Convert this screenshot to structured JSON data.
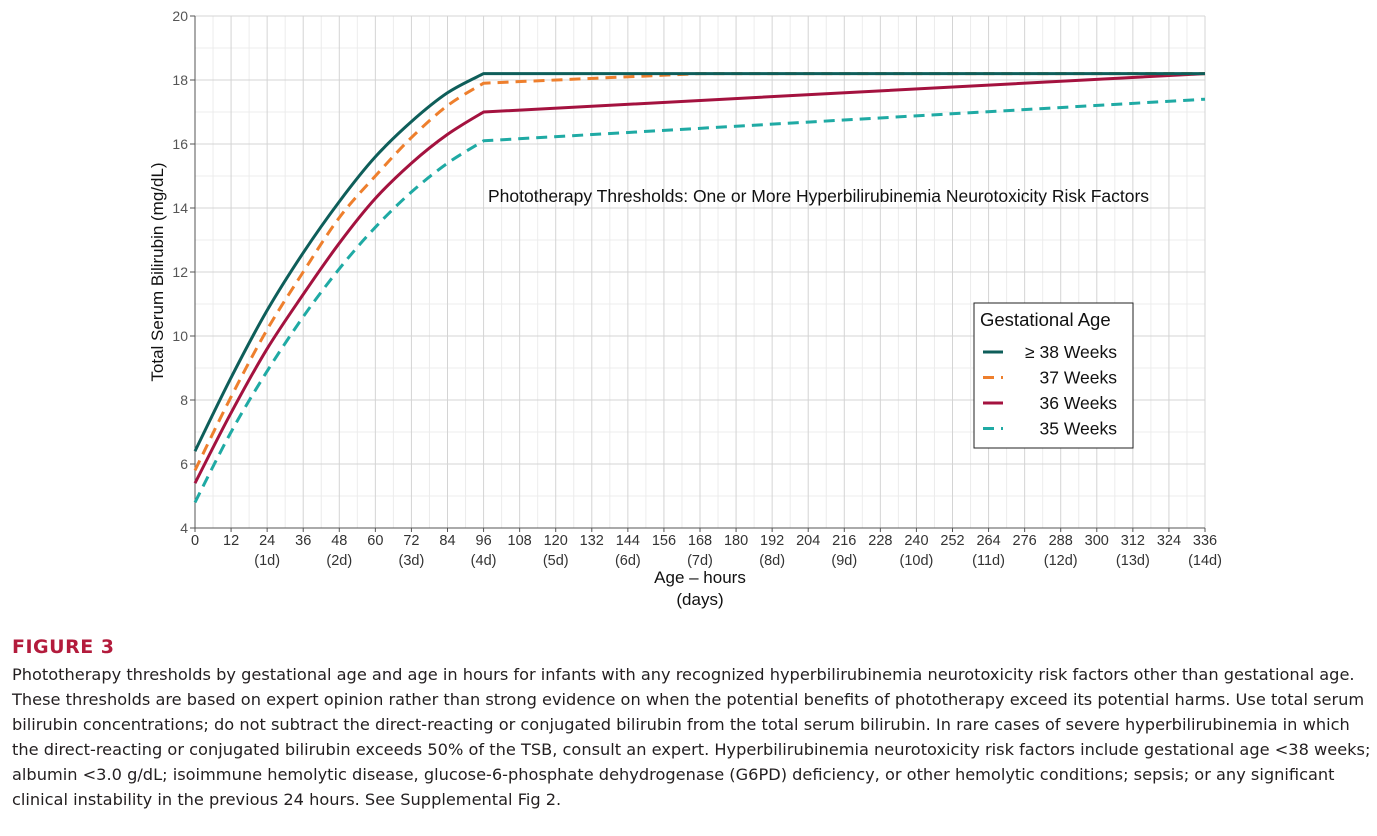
{
  "chart_data": {
    "type": "line",
    "annotation": "Phototherapy Thresholds:  One or More Hyperbilirubinemia Neurotoxicity Risk Factors",
    "xlabel": "Age – hours",
    "xlabel_sub": "(days)",
    "ylabel": "Total Serum Bilirubin (mg/dL)",
    "xlim": [
      0,
      336
    ],
    "ylim": [
      4,
      20
    ],
    "x_ticks": [
      0,
      12,
      24,
      36,
      48,
      60,
      72,
      84,
      96,
      108,
      120,
      132,
      144,
      156,
      168,
      180,
      192,
      204,
      216,
      228,
      240,
      252,
      264,
      276,
      288,
      300,
      312,
      324,
      336
    ],
    "x_day_labels": [
      {
        "x": 24,
        "label": "(1d)"
      },
      {
        "x": 48,
        "label": "(2d)"
      },
      {
        "x": 72,
        "label": "(3d)"
      },
      {
        "x": 96,
        "label": "(4d)"
      },
      {
        "x": 120,
        "label": "(5d)"
      },
      {
        "x": 144,
        "label": "(6d)"
      },
      {
        "x": 168,
        "label": "(7d)"
      },
      {
        "x": 192,
        "label": "(8d)"
      },
      {
        "x": 216,
        "label": "(9d)"
      },
      {
        "x": 240,
        "label": "(10d)"
      },
      {
        "x": 264,
        "label": "(11d)"
      },
      {
        "x": 288,
        "label": "(12d)"
      },
      {
        "x": 312,
        "label": "(13d)"
      },
      {
        "x": 336,
        "label": "(14d)"
      }
    ],
    "y_ticks": [
      4,
      6,
      8,
      10,
      12,
      14,
      16,
      18,
      20
    ],
    "grid": true,
    "legend": {
      "title": "Gestational Age",
      "position": "right"
    },
    "series": [
      {
        "name": "≥ 38 Weeks",
        "color": "#0e5e5a",
        "dash": "solid",
        "x": [
          0,
          12,
          24,
          36,
          48,
          60,
          72,
          84,
          96,
          336
        ],
        "y": [
          6.4,
          8.7,
          10.8,
          12.6,
          14.2,
          15.6,
          16.7,
          17.6,
          18.2,
          18.2
        ]
      },
      {
        "name": "37 Weeks",
        "color": "#ee7f2d",
        "dash": "dashed",
        "x": [
          0,
          12,
          24,
          36,
          48,
          60,
          72,
          84,
          96,
          168,
          336
        ],
        "y": [
          5.8,
          8.1,
          10.2,
          12.0,
          13.7,
          15.0,
          16.2,
          17.2,
          17.9,
          18.2,
          18.2
        ]
      },
      {
        "name": "36 Weeks",
        "color": "#a4123f",
        "dash": "solid",
        "x": [
          0,
          12,
          24,
          36,
          48,
          60,
          72,
          84,
          96,
          336
        ],
        "y": [
          5.4,
          7.6,
          9.6,
          11.3,
          12.9,
          14.3,
          15.4,
          16.3,
          17.0,
          18.2
        ]
      },
      {
        "name": "35 Weeks",
        "color": "#1faaa4",
        "dash": "dashed",
        "x": [
          0,
          12,
          24,
          36,
          48,
          60,
          72,
          84,
          96,
          336
        ],
        "y": [
          4.8,
          7.0,
          8.9,
          10.6,
          12.1,
          13.4,
          14.5,
          15.4,
          16.1,
          17.4
        ]
      }
    ]
  },
  "figure": {
    "label": "FIGURE 3",
    "caption": "Phototherapy thresholds by gestational age and age in hours for infants with any recognized hyperbilirubinemia neurotoxicity risk factors other than gestational age. These thresholds are based on expert opinion rather than strong evidence on when the potential benefits of phototherapy exceed its potential harms. Use total serum bilirubin concentrations; do not subtract the direct-reacting or conjugated bilirubin from the total serum bilirubin. In rare cases of severe hyperbilirubinemia in which the direct-reacting or conjugated bilirubin exceeds 50% of the TSB, consult an expert. Hyperbilirubinemia neurotoxicity risk factors include gestational age <38 weeks; albumin <3.0 g/dL; isoimmune hemolytic disease, glucose-6-phosphate dehydrogenase (G6PD) deficiency, or other hemolytic conditions; sepsis; or any significant clinical instability in the previous 24 hours. See Supplemental Fig 2."
  }
}
